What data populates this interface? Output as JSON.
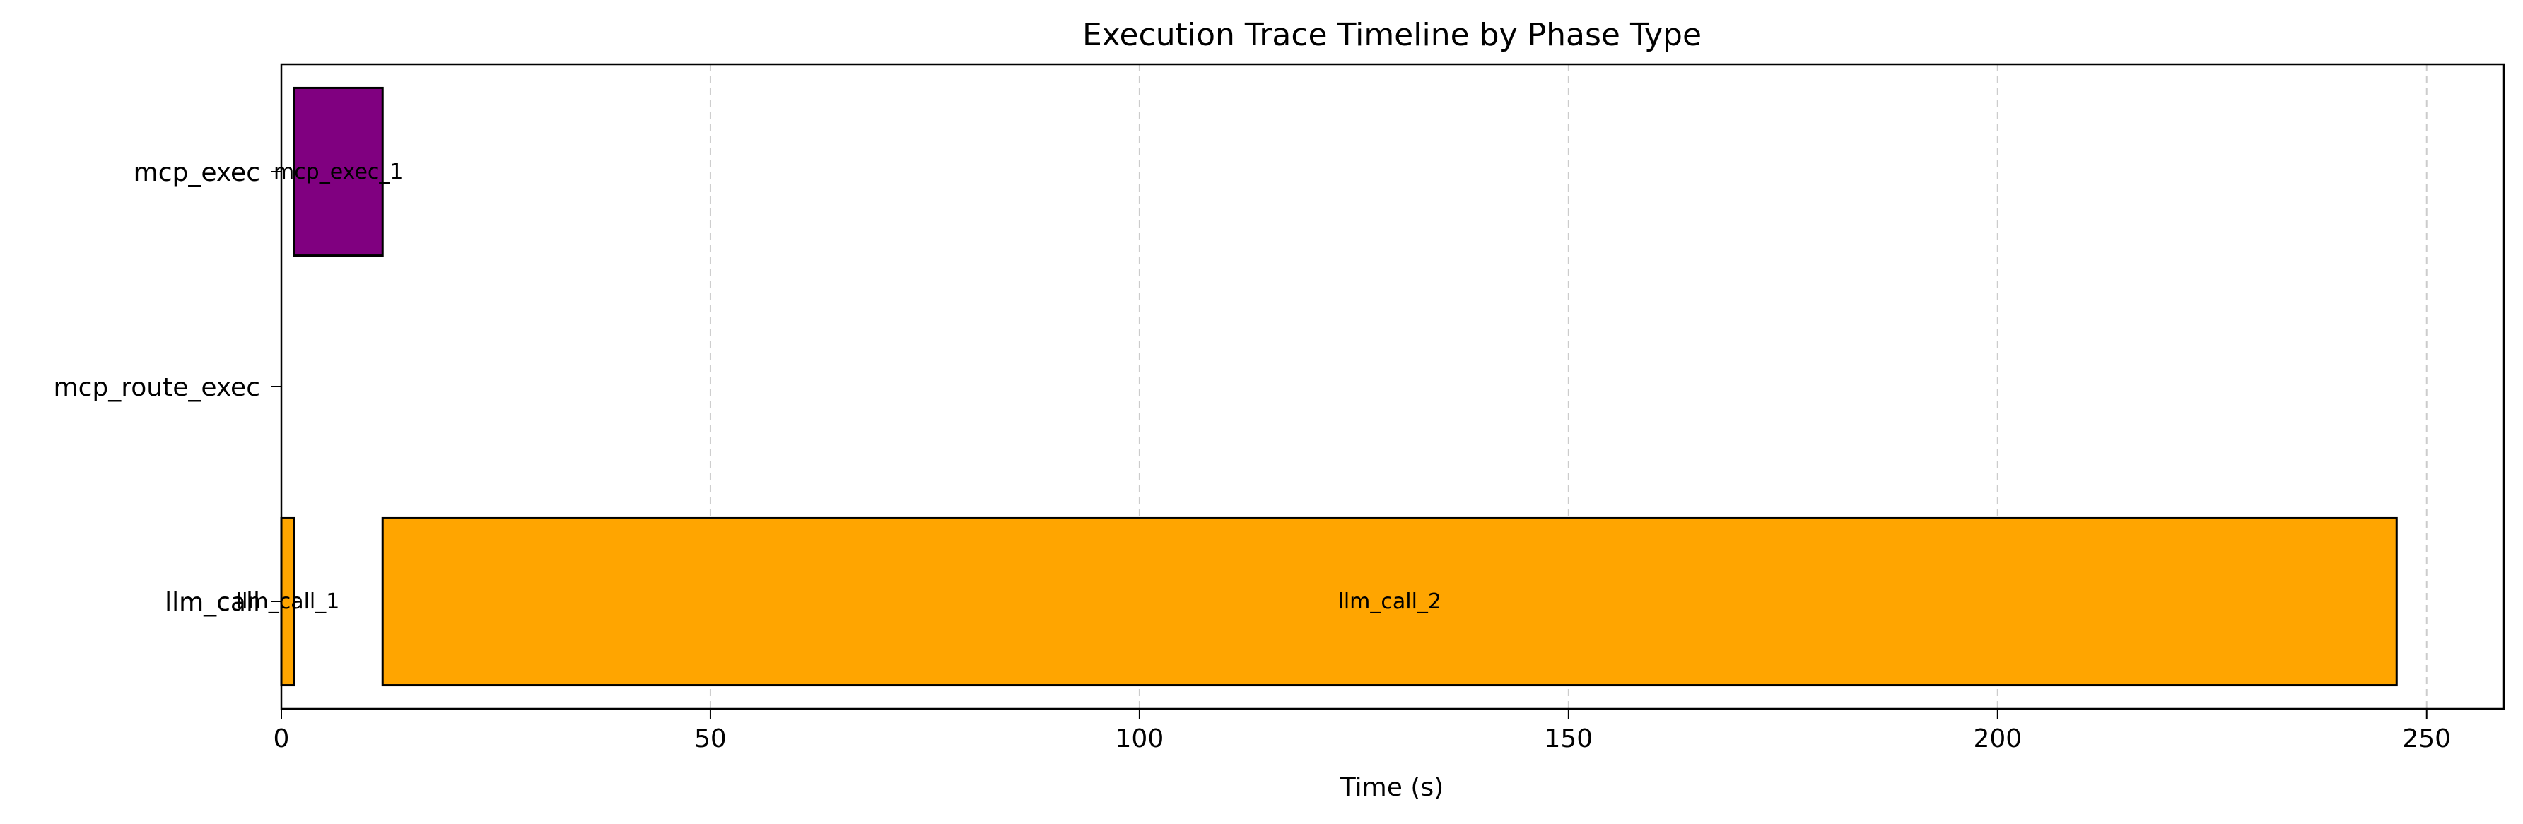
{
  "chart_data": {
    "type": "bar",
    "orientation": "horizontal",
    "title": "Execution Trace Timeline by Phase Type",
    "xlabel": "Time (s)",
    "ylabel": "",
    "xlim": [
      0,
      259
    ],
    "xticks": [
      0,
      50,
      100,
      150,
      200,
      250
    ],
    "grid": "x, dashed",
    "categories": [
      "mcp_exec",
      "mcp_route_exec",
      "llm_call"
    ],
    "bars": [
      {
        "category": "llm_call",
        "label": "llm_call_1",
        "start": 0,
        "end": 1.5,
        "color": "#FFA500"
      },
      {
        "category": "llm_call",
        "label": "llm_call_2",
        "start": 11.8,
        "end": 246.5,
        "color": "#FFA500"
      },
      {
        "category": "mcp_exec",
        "label": "mcp_exec_1",
        "start": 1.5,
        "end": 11.8,
        "color": "#800080"
      }
    ]
  }
}
